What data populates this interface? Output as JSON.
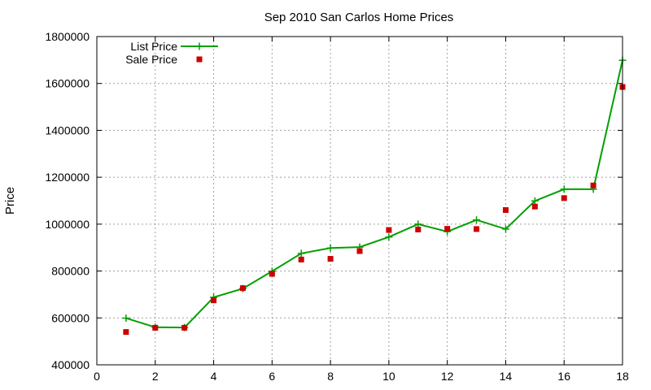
{
  "chart_data": {
    "type": "line",
    "title": "Sep 2010 San Carlos Home Prices",
    "xlabel": "",
    "ylabel": "Price",
    "xlim": [
      0,
      18
    ],
    "ylim": [
      400000,
      1800000
    ],
    "xticks": [
      "0",
      "2",
      "4",
      "6",
      "8",
      "10",
      "12",
      "14",
      "16",
      "18"
    ],
    "yticks": [
      "400000",
      "600000",
      "800000",
      "1000000",
      "1200000",
      "1400000",
      "1600000",
      "1800000"
    ],
    "grid": true,
    "legend_position": "top-left",
    "x": [
      1,
      2,
      3,
      4,
      5,
      6,
      7,
      8,
      9,
      10,
      11,
      12,
      13,
      14,
      15,
      16,
      17,
      18
    ],
    "series": [
      {
        "name": "List Price",
        "type": "line",
        "color": "#00a000",
        "values": [
          599000,
          560000,
          559000,
          688000,
          725000,
          799000,
          875000,
          898000,
          902000,
          945000,
          1000000,
          968000,
          1018000,
          979000,
          1099000,
          1149000,
          1149000,
          1699000
        ]
      },
      {
        "name": "Sale Price",
        "type": "scatter",
        "color": "#cc0000",
        "values": [
          540000,
          558000,
          558000,
          675000,
          727000,
          788000,
          849000,
          852000,
          885000,
          975000,
          977000,
          980000,
          979000,
          1060000,
          1075000,
          1111000,
          1165000,
          1585000
        ]
      }
    ]
  }
}
